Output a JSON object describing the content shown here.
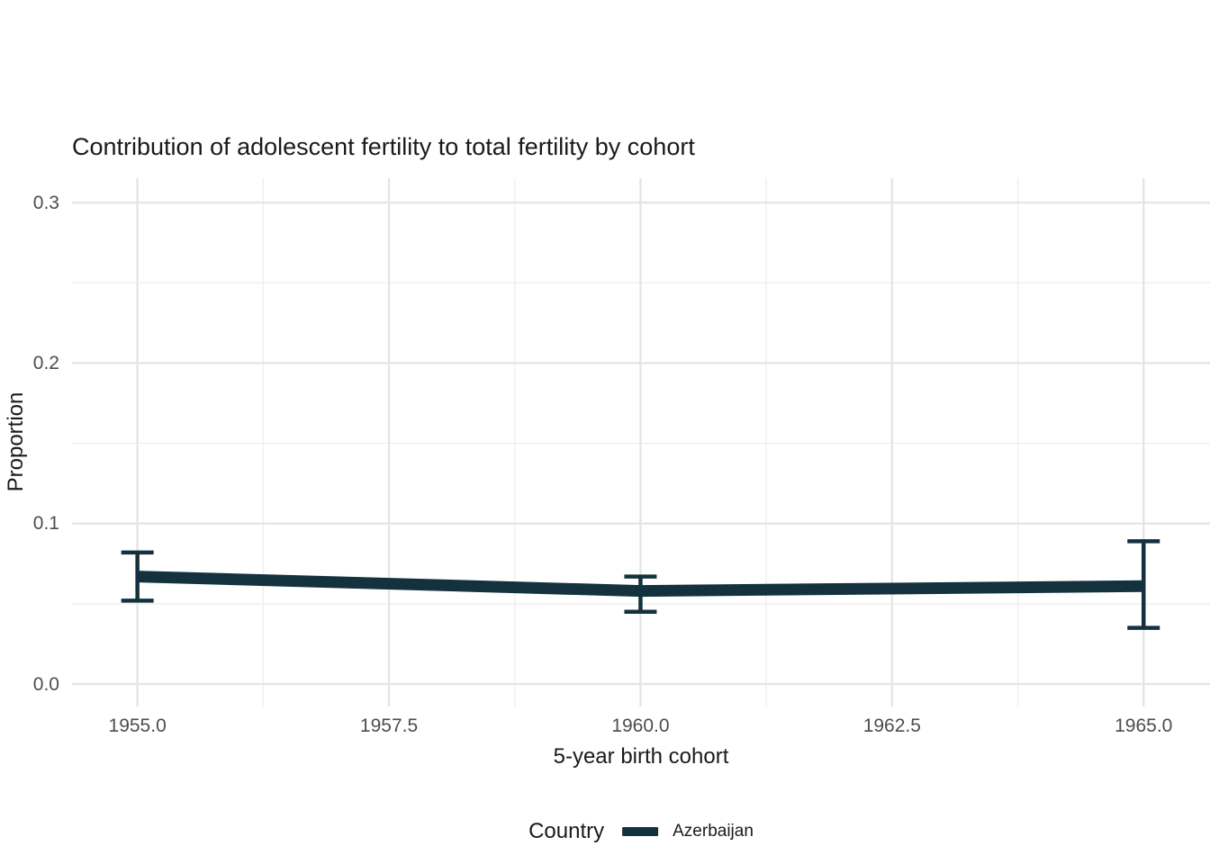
{
  "title": "Contribution of adolescent fertility to total fertility by cohort",
  "colors": {
    "background": "#ffffff",
    "line": "#14323E",
    "grid_major": "#e5e5e5",
    "grid_minor": "#efefef",
    "tick_label": "#4d4d4d",
    "text": "#1a1a1a"
  },
  "legend": {
    "title": "Country",
    "items": [
      {
        "label": "Azerbaijan",
        "color": "#14323E"
      }
    ]
  },
  "chart_data": {
    "type": "line",
    "title": "Contribution of adolescent fertility to total fertility by cohort",
    "xlabel": "5-year birth cohort",
    "ylabel": "Proportion",
    "x": [
      1955,
      1960,
      1965
    ],
    "series": [
      {
        "name": "Azerbaijan",
        "color": "#14323E",
        "values": [
          0.067,
          0.058,
          0.061
        ],
        "ci_lower": [
          0.052,
          0.045,
          0.035
        ],
        "ci_upper": [
          0.082,
          0.067,
          0.089
        ]
      }
    ],
    "x_ticks": {
      "values": [
        1955,
        1957.5,
        1960,
        1962.5,
        1965
      ],
      "labels": [
        "1955.0",
        "1957.5",
        "1960.0",
        "1962.5",
        "1965.0"
      ]
    },
    "y_ticks": {
      "values": [
        0,
        0.1,
        0.2,
        0.3
      ],
      "labels": [
        "0.0",
        "0.1",
        "0.2",
        "0.3"
      ]
    },
    "x_minor": [
      1956.25,
      1958.75,
      1961.25,
      1963.75
    ],
    "y_minor": [
      0.05,
      0.15,
      0.25
    ],
    "xlim": [
      1954.35,
      1965.66
    ],
    "ylim": [
      -0.014,
      0.3152
    ],
    "grid": true,
    "legend_position": "bottom",
    "error_bars": true
  }
}
